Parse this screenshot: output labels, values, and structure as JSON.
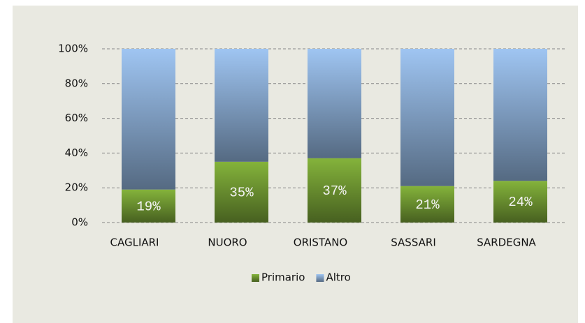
{
  "chart_data": {
    "type": "stacked_bar",
    "categories": [
      "CAGLIARI",
      "NUORO",
      "ORISTANO",
      "SASSARI",
      "SARDEGNA"
    ],
    "series": [
      {
        "name": "Primario",
        "color": "#76a035",
        "values": [
          19,
          35,
          37,
          21,
          24
        ],
        "value_labels": [
          "19%",
          "35%",
          "37%",
          "21%",
          "24%"
        ]
      },
      {
        "name": "Altro",
        "color": "#8eb0d8",
        "values": [
          81,
          65,
          63,
          79,
          76
        ]
      }
    ],
    "ylim": [
      0,
      100
    ],
    "yticks": [
      {
        "value": 0,
        "label": "0%"
      },
      {
        "value": 20,
        "label": "20%"
      },
      {
        "value": 40,
        "label": "40%"
      },
      {
        "value": 60,
        "label": "60%"
      },
      {
        "value": 80,
        "label": "80%"
      },
      {
        "value": 100,
        "label": "100%"
      }
    ],
    "grid": true,
    "legend": "bottom"
  }
}
